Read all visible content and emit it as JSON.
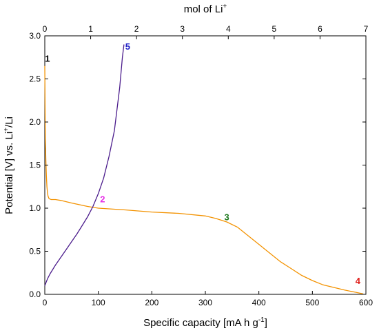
{
  "chart_data": {
    "type": "line",
    "xlabel_parts": [
      "Specific capacity [mA h g",
      "-1",
      "]"
    ],
    "ylabel_parts": [
      "Potential [V] vs. Li",
      "+",
      "/Li"
    ],
    "x2label_parts": [
      "mol of Li",
      "+"
    ],
    "xlim": [
      0,
      600
    ],
    "ylim": [
      0,
      3.0
    ],
    "x2lim": [
      0,
      7
    ],
    "xticks": [
      "0",
      "100",
      "200",
      "300",
      "400",
      "500",
      "600"
    ],
    "yticks": [
      "0.0",
      "0.5",
      "1.0",
      "1.5",
      "2.0",
      "2.5",
      "3.0"
    ],
    "x2ticks": [
      "0",
      "1",
      "2",
      "3",
      "4",
      "5",
      "6",
      "7"
    ],
    "series": [
      {
        "color": "#f39200",
        "points": [
          [
            0,
            2.65
          ],
          [
            0.5,
            2.2
          ],
          [
            1,
            1.8
          ],
          [
            2,
            1.55
          ],
          [
            3,
            1.38
          ],
          [
            4,
            1.25
          ],
          [
            5,
            1.18
          ],
          [
            6,
            1.14
          ],
          [
            8,
            1.11
          ],
          [
            12,
            1.1
          ],
          [
            20,
            1.1
          ],
          [
            30,
            1.09
          ],
          [
            50,
            1.06
          ],
          [
            80,
            1.02
          ],
          [
            100,
            1.0
          ],
          [
            150,
            0.98
          ],
          [
            200,
            0.955
          ],
          [
            250,
            0.94
          ],
          [
            300,
            0.91
          ],
          [
            320,
            0.88
          ],
          [
            340,
            0.84
          ],
          [
            360,
            0.78
          ],
          [
            380,
            0.68
          ],
          [
            400,
            0.58
          ],
          [
            420,
            0.48
          ],
          [
            440,
            0.38
          ],
          [
            460,
            0.3
          ],
          [
            480,
            0.22
          ],
          [
            500,
            0.16
          ],
          [
            520,
            0.11
          ],
          [
            540,
            0.08
          ],
          [
            560,
            0.05
          ],
          [
            580,
            0.025
          ],
          [
            595,
            0.005
          ]
        ]
      },
      {
        "color": "#4b1c8c",
        "points": [
          [
            0,
            0.1
          ],
          [
            5,
            0.18
          ],
          [
            10,
            0.24
          ],
          [
            20,
            0.34
          ],
          [
            30,
            0.43
          ],
          [
            40,
            0.52
          ],
          [
            50,
            0.61
          ],
          [
            60,
            0.7
          ],
          [
            70,
            0.8
          ],
          [
            80,
            0.9
          ],
          [
            90,
            1.02
          ],
          [
            100,
            1.17
          ],
          [
            110,
            1.35
          ],
          [
            120,
            1.6
          ],
          [
            130,
            1.9
          ],
          [
            140,
            2.4
          ],
          [
            145,
            2.75
          ],
          [
            148,
            2.9
          ]
        ]
      }
    ],
    "annotations": [
      {
        "label": "1",
        "x": 5,
        "y": 2.7,
        "color": "#000000"
      },
      {
        "label": "2",
        "x": 108,
        "y": 1.07,
        "color": "#e62ee6"
      },
      {
        "label": "3",
        "x": 340,
        "y": 0.86,
        "color": "#1f7a1f"
      },
      {
        "label": "4",
        "x": 585,
        "y": 0.12,
        "color": "#e0201c"
      },
      {
        "label": "5",
        "x": 155,
        "y": 2.84,
        "color": "#2020c8"
      }
    ]
  }
}
